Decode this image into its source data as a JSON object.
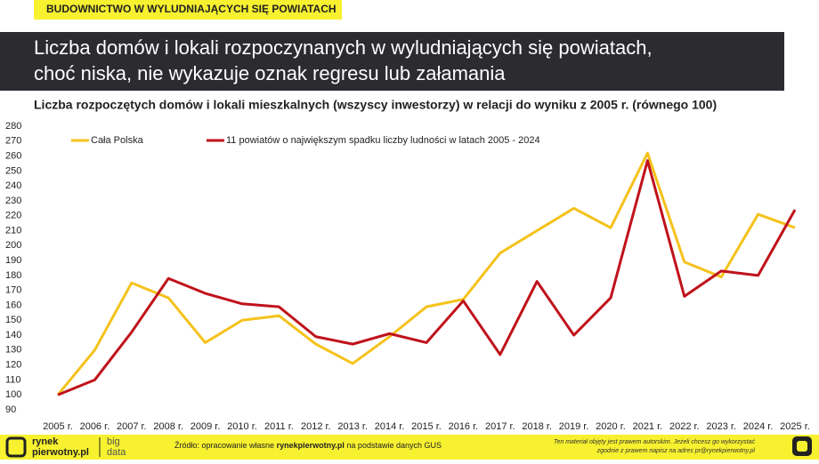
{
  "header": {
    "tag": "BUDOWNICTWO W WYLUDNIAJĄCYCH SIĘ POWIATACH",
    "title_lines": [
      "Liczba domów i lokali rozpoczynanych w wyludniających się powiatach,",
      "choć niska, nie wykazuje oznak regresu lub załamania"
    ]
  },
  "chart_data": {
    "type": "line",
    "title": "Liczba rozpoczętych domów i lokali mieszkalnych (wszyscy inwestorzy) w relacji do wyniku z 2005 r. (równego 100)",
    "categories": [
      "2005 r.",
      "2006 r.",
      "2007 r.",
      "2008 r.",
      "2009 r.",
      "2010 r.",
      "2011 r.",
      "2012 r.",
      "2013 r.",
      "2014 r.",
      "2015 r.",
      "2016 r.",
      "2017 r.",
      "2018 r.",
      "2019 r.",
      "2020 r.",
      "2021 r.",
      "2022 r.",
      "2023 r.",
      "2024 r.",
      "2025 r."
    ],
    "series": [
      {
        "name": "Cała Polska",
        "color": "#f5c21b",
        "values": [
          100,
          130,
          175,
          165,
          135,
          150,
          153,
          134,
          121,
          139,
          159,
          164,
          195,
          210,
          225,
          212,
          262,
          189,
          179,
          221,
          212
        ]
      },
      {
        "name": "11 powiatów o największym spadku liczby ludności w latach 2005 - 2024",
        "color": "#c0121b",
        "values": [
          100,
          110,
          142,
          178,
          168,
          161,
          159,
          139,
          134,
          141,
          135,
          163,
          127,
          176,
          140,
          165,
          257,
          166,
          183,
          180,
          224
        ]
      }
    ],
    "ylim": [
      90,
      280
    ],
    "yticks": [
      90,
      100,
      110,
      120,
      130,
      140,
      150,
      160,
      170,
      180,
      190,
      200,
      210,
      220,
      230,
      240,
      250,
      260,
      270,
      280
    ],
    "grid": false
  },
  "footer": {
    "logo": [
      "rynek",
      "pierwotny.pl"
    ],
    "logo2": [
      "big",
      "data"
    ],
    "source": [
      "Źródło: opracowanie własne ",
      "rynekpierwotny.pl",
      " na podstawie danych GUS"
    ],
    "copyright": [
      "Ten materiał objęty jest prawem autorskim. Jeżeli chcesz go wykorzystać",
      "zgodnie z prawem napisz na adres pr@rynekpierwotny.pl"
    ]
  }
}
